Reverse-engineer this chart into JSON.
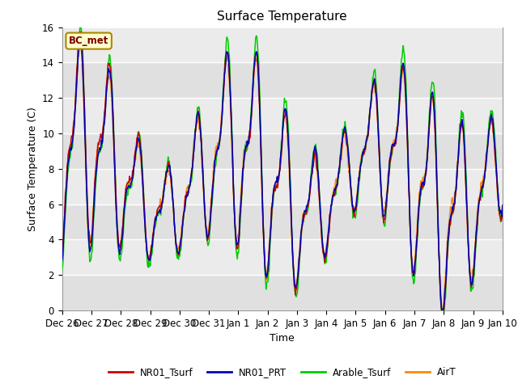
{
  "title": "Surface Temperature",
  "ylabel": "Surface Temperature (C)",
  "xlabel": "Time",
  "ylim": [
    0,
    16
  ],
  "annotation": "BC_met",
  "bg_color": "#dcdcdc",
  "plot_bg": "#e8e8e8",
  "legend_entries": [
    "NR01_Tsurf",
    "NR01_PRT",
    "Arable_Tsurf",
    "AirT"
  ],
  "legend_colors": [
    "#cc0000",
    "#0000bb",
    "#00cc00",
    "#ff8800"
  ],
  "tick_labels": [
    "Dec 26",
    "Dec 27",
    "Dec 28",
    "Dec 29",
    "Dec 30",
    "Dec 31",
    "Jan 1",
    "Jan 2",
    "Jan 3",
    "Jan 4",
    "Jan 5",
    "Jan 6",
    "Jan 7",
    "Jan 8",
    "Jan 9",
    "Jan 10"
  ],
  "yticks": [
    0,
    2,
    4,
    6,
    8,
    10,
    12,
    14,
    16
  ]
}
